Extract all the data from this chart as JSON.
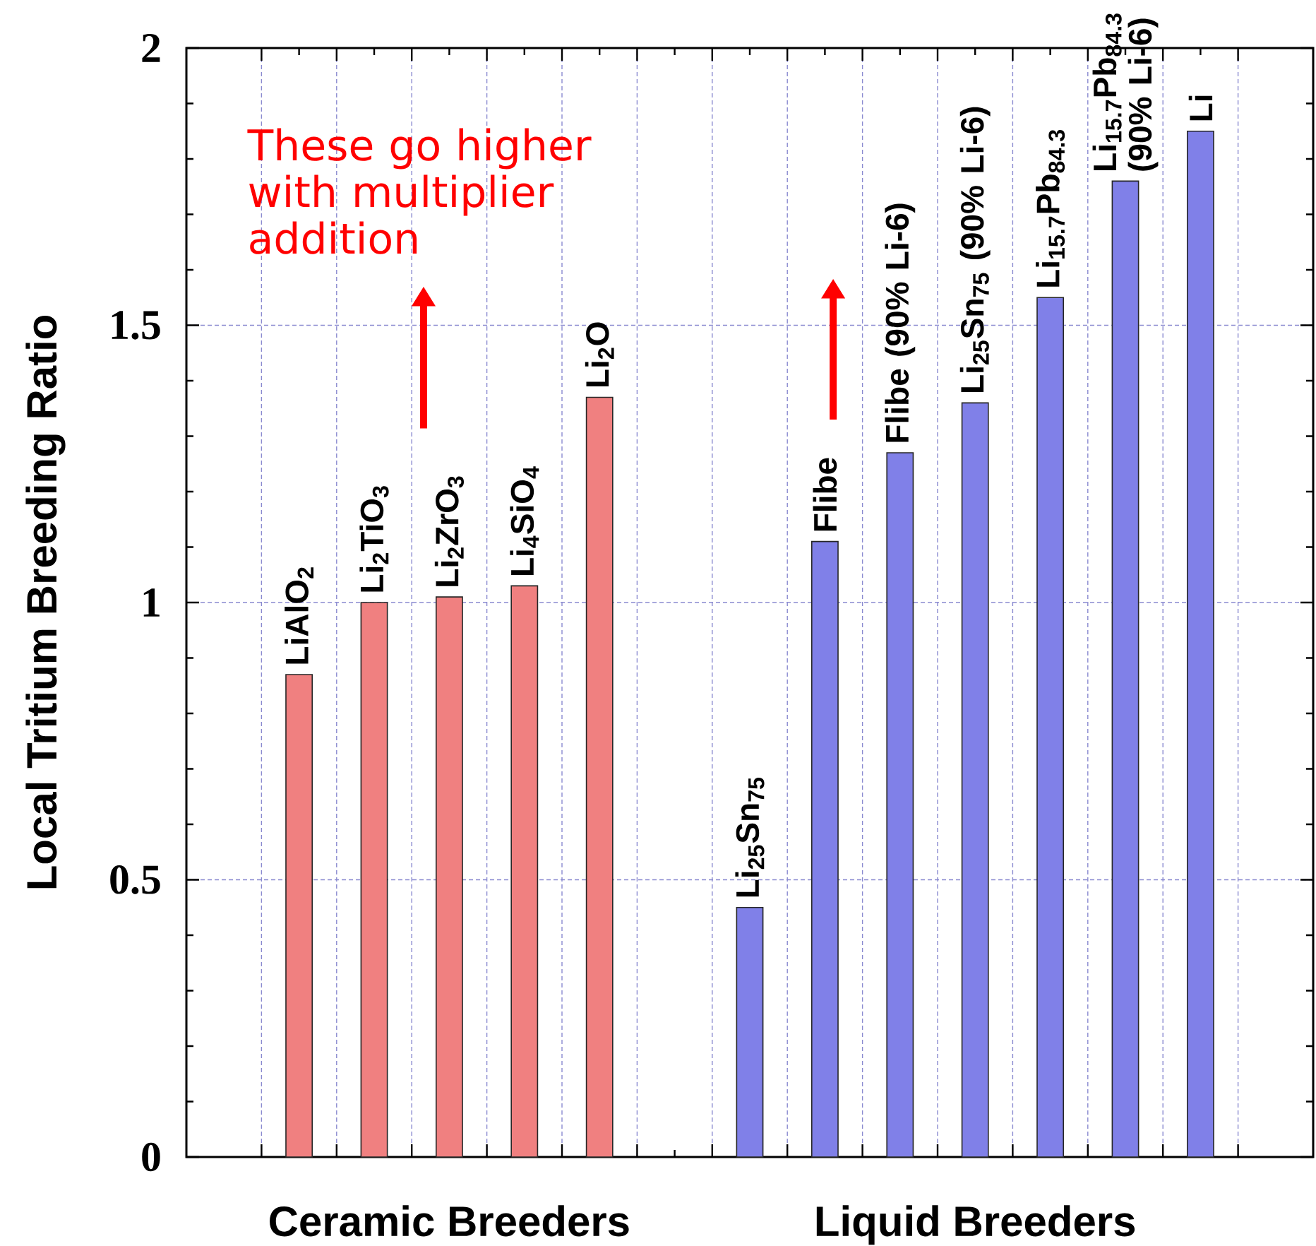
{
  "chart_data": {
    "type": "bar",
    "ylabel": "Local Tritium Breeding Ratio",
    "categories": [
      "LiAlO$_{2}$",
      "Li$_{2}$TiO$_{3}$",
      "Li$_{2}$ZrO$_{3}$",
      "Li$_{4}$SiO$_{4}$",
      "Li$_{2}$O",
      null,
      "Li$_{25}$Sn$_{75}$",
      "Flibe",
      "Flibe (90% Li-6)",
      "Li$_{25}$Sn$_{75}$ (90% Li-6)",
      "Li$_{15.7}$Pb$_{84.3}$",
      "Li$_{15.7}$Pb$_{84.3}$ (90% Li-6)",
      "Li"
    ],
    "series": [
      {
        "name": "Ceramic Breeders",
        "color": "#f08080",
        "values": [
          0.87,
          1.0,
          1.01,
          1.03,
          1.37,
          null,
          null,
          null,
          null,
          null,
          null,
          null,
          null
        ]
      },
      {
        "name": "Liquid Breeders",
        "color": "#8080e8",
        "values": [
          null,
          null,
          null,
          null,
          null,
          null,
          0.45,
          1.11,
          1.27,
          1.36,
          1.55,
          1.76,
          1.85
        ]
      }
    ],
    "ylim": [
      0,
      2
    ],
    "yticks": [
      0,
      0.5,
      1,
      1.5,
      2
    ],
    "grid": true,
    "annotations": [
      "These go higher with multiplier addition"
    ]
  }
}
